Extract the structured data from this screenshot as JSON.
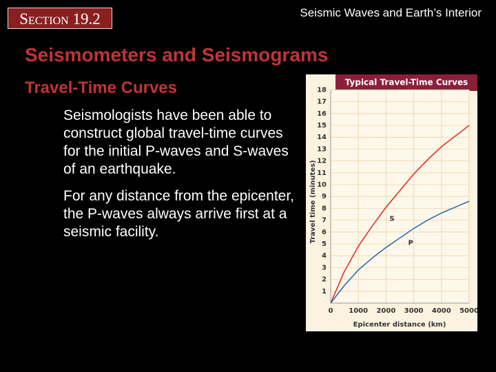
{
  "header": {
    "section": "Section 19.2",
    "title": "Seismic Waves and Earth’s Interior"
  },
  "slide": {
    "heading": "Seismometers and Seismograms",
    "subheading": "Travel-Time Curves",
    "bullets": [
      "Seismologists have been able to construct global travel-time curves for the initial P-waves and S-waves of an earthquake.",
      "For any distance from the epicenter, the P-waves always arrive first at a seismic facility."
    ]
  },
  "chart_data": {
    "type": "line",
    "title": "Typical Travel-Time Curves",
    "x_label": "Epicenter distance (km)",
    "y_label": "Travel time (minutes)",
    "x": [
      0,
      500,
      1000,
      1500,
      2000,
      2500,
      3000,
      3500,
      4000,
      4500,
      5000
    ],
    "series": [
      {
        "name": "S",
        "color": "#e0302a",
        "values": [
          0,
          2.7,
          4.8,
          6.5,
          8.1,
          9.5,
          10.9,
          12.1,
          13.2,
          14.1,
          15
        ]
      },
      {
        "name": "P",
        "color": "#2a6fb0",
        "values": [
          0,
          1.5,
          2.8,
          3.8,
          4.7,
          5.5,
          6.3,
          7,
          7.6,
          8.1,
          8.6
        ]
      }
    ],
    "xlim": [
      0,
      5000
    ],
    "xticks": [
      0,
      1000,
      2000,
      3000,
      4000,
      5000
    ],
    "ylim": [
      0,
      18
    ],
    "yticks": [
      1,
      2,
      3,
      4,
      5,
      6,
      7,
      8,
      9,
      10,
      11,
      12,
      13,
      14,
      15,
      16,
      17,
      18
    ],
    "grid": true
  }
}
